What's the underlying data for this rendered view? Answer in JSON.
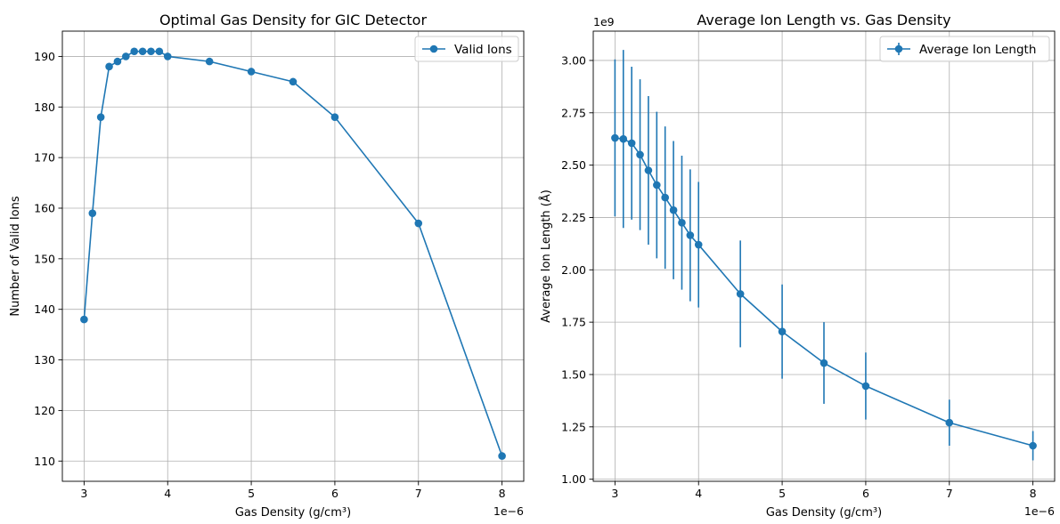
{
  "colors": {
    "series": "#1f77b4",
    "grid": "#b0b0b0",
    "axes": "#000000"
  },
  "chart_data": [
    {
      "type": "line",
      "title": "Optimal Gas Density for GIC Detector",
      "xlabel": "Gas Density (g/cm³)",
      "ylabel": "Number of Valid Ions",
      "x_offset_label": "1e−6",
      "xlim": [
        2.74e-06,
        8.26e-06
      ],
      "ylim": [
        106.0,
        195.0
      ],
      "xticks": [
        3e-06,
        4e-06,
        5e-06,
        6e-06,
        7e-06,
        8e-06
      ],
      "xtick_labels": [
        "3",
        "4",
        "5",
        "6",
        "7",
        "8"
      ],
      "yticks": [
        110,
        120,
        130,
        140,
        150,
        160,
        170,
        180,
        190
      ],
      "ytick_labels": [
        "110",
        "120",
        "130",
        "140",
        "150",
        "160",
        "170",
        "180",
        "190"
      ],
      "grid": true,
      "legend_position": "top-right",
      "series": [
        {
          "name": "Valid Ions",
          "marker": "circle",
          "x": [
            3e-06,
            3.1e-06,
            3.2e-06,
            3.3e-06,
            3.4e-06,
            3.5e-06,
            3.6e-06,
            3.7e-06,
            3.8e-06,
            3.9e-06,
            4e-06,
            4.5e-06,
            5e-06,
            5.5e-06,
            6e-06,
            7e-06,
            8e-06
          ],
          "y": [
            138,
            159,
            178,
            188,
            189,
            190,
            191,
            191,
            191,
            191,
            190,
            189,
            187,
            185,
            178,
            157,
            111
          ]
        }
      ]
    },
    {
      "type": "line",
      "title": "Average Ion Length vs. Gas Density",
      "xlabel": "Gas Density (g/cm³)",
      "ylabel": "Average Ion Length (Å)",
      "x_offset_label": "1e−6",
      "y_offset_label": "1e9",
      "xlim": [
        2.74e-06,
        8.26e-06
      ],
      "ylim": [
        990000000.0,
        3140000000.0
      ],
      "xticks": [
        3e-06,
        4e-06,
        5e-06,
        6e-06,
        7e-06,
        8e-06
      ],
      "xtick_labels": [
        "3",
        "4",
        "5",
        "6",
        "7",
        "8"
      ],
      "yticks": [
        1000000000.0,
        1250000000.0,
        1500000000.0,
        1750000000.0,
        2000000000.0,
        2250000000.0,
        2500000000.0,
        2750000000.0,
        3000000000.0
      ],
      "ytick_labels": [
        "1.00",
        "1.25",
        "1.50",
        "1.75",
        "2.00",
        "2.25",
        "2.50",
        "2.75",
        "3.00"
      ],
      "grid": true,
      "legend_position": "top-right",
      "series": [
        {
          "name": "Average Ion Length",
          "marker": "circle",
          "error_bars": true,
          "x": [
            3e-06,
            3.1e-06,
            3.2e-06,
            3.3e-06,
            3.4e-06,
            3.5e-06,
            3.6e-06,
            3.7e-06,
            3.8e-06,
            3.9e-06,
            4e-06,
            4.5e-06,
            5e-06,
            5.5e-06,
            6e-06,
            7e-06,
            8e-06
          ],
          "y": [
            2630000000.0,
            2625000000.0,
            2605000000.0,
            2550000000.0,
            2475000000.0,
            2405000000.0,
            2345000000.0,
            2285000000.0,
            2225000000.0,
            2165000000.0,
            2120000000.0,
            1885000000.0,
            1705000000.0,
            1555000000.0,
            1445000000.0,
            1270000000.0,
            1160000000.0
          ],
          "err": [
            375000000.0,
            425000000.0,
            365000000.0,
            360000000.0,
            355000000.0,
            350000000.0,
            340000000.0,
            330000000.0,
            320000000.0,
            315000000.0,
            300000000.0,
            255000000.0,
            225000000.0,
            195000000.0,
            160000000.0,
            110000000.0,
            70000000.0
          ]
        }
      ]
    }
  ]
}
